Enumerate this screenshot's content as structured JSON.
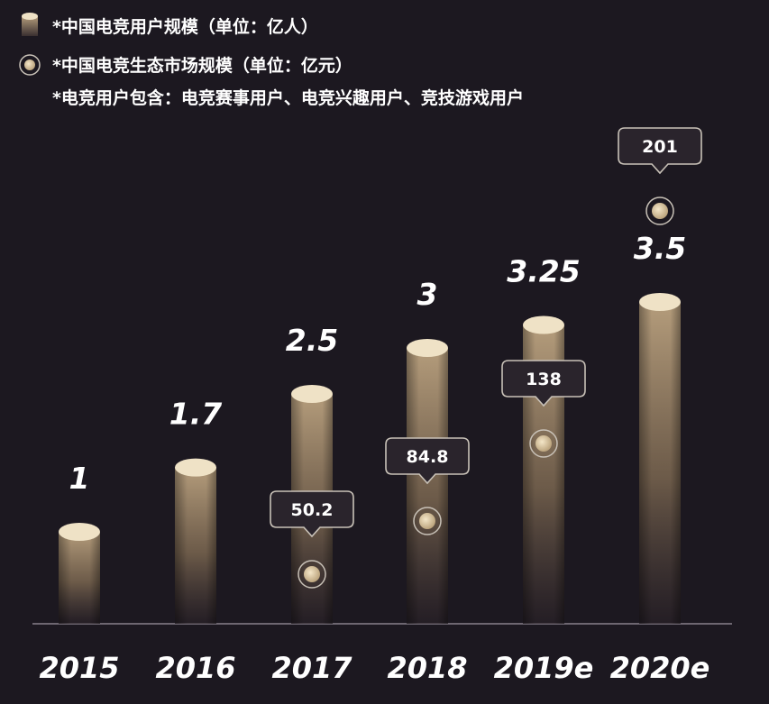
{
  "legend": {
    "users": "*中国电竞用户规模（单位：亿人）",
    "market": "*中国电竞生态市场规模（单位：亿元）",
    "note": "*电竞用户包含：电竞赛事用户、电竞兴趣用户、竞技游戏用户"
  },
  "colors": {
    "background": "#1c1820",
    "bar_top": "#efe2c6",
    "bar_body": "#a58e6f",
    "bubble_border": "#c9c2b8",
    "bubble_fill": "#2a242c"
  },
  "chart_data": {
    "type": "bar",
    "categories": [
      "2015",
      "2016",
      "2017",
      "2018",
      "2019e",
      "2020e"
    ],
    "series": [
      {
        "name": "*中国电竞用户规模（单位：亿人）",
        "unit": "亿人",
        "values": [
          1,
          1.7,
          2.5,
          3,
          3.25,
          3.5
        ],
        "labels": [
          "1",
          "1.7",
          "2.5",
          "3",
          "3.25",
          "3.5"
        ]
      },
      {
        "name": "*中国电竞生态市场规模（单位：亿元）",
        "unit": "亿元",
        "values": [
          null,
          null,
          50.2,
          84.8,
          138,
          201
        ],
        "labels": [
          "",
          "",
          "50.2",
          "84.8",
          "138",
          "201"
        ]
      }
    ],
    "ylim": [
      0,
      3.5
    ],
    "grid": false
  }
}
